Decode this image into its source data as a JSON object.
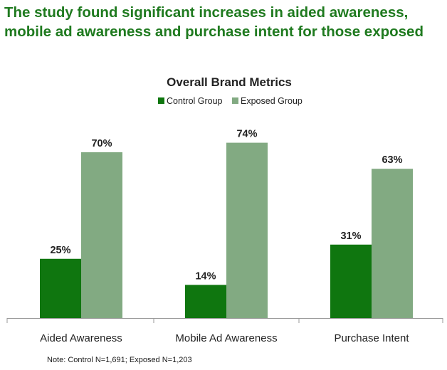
{
  "headline": {
    "line1": "The study found significant increases in aided awareness,",
    "line2": "mobile ad awareness and purchase intent for those exposed"
  },
  "footnote": "Note: Control N=1,691; Exposed N=1,203",
  "colors": {
    "headline": "#1f7a1f",
    "control": "#0f760f",
    "exposed": "#82aa82",
    "axis": "#9a9a9a",
    "text": "#222222"
  },
  "chart_data": {
    "type": "bar",
    "title": "Overall Brand Metrics",
    "xlabel": "",
    "ylabel": "",
    "ylim": [
      0,
      80
    ],
    "grid": false,
    "legend_position": "top-center",
    "categories": [
      "Aided Awareness",
      "Mobile Ad Awareness",
      "Purchase Intent"
    ],
    "series": [
      {
        "name": "Control Group",
        "values": [
          25,
          14,
          31
        ],
        "labels": [
          "25%",
          "14%",
          "31%"
        ]
      },
      {
        "name": "Exposed Group",
        "values": [
          70,
          74,
          63
        ],
        "labels": [
          "70%",
          "74%",
          "63%"
        ]
      }
    ]
  }
}
